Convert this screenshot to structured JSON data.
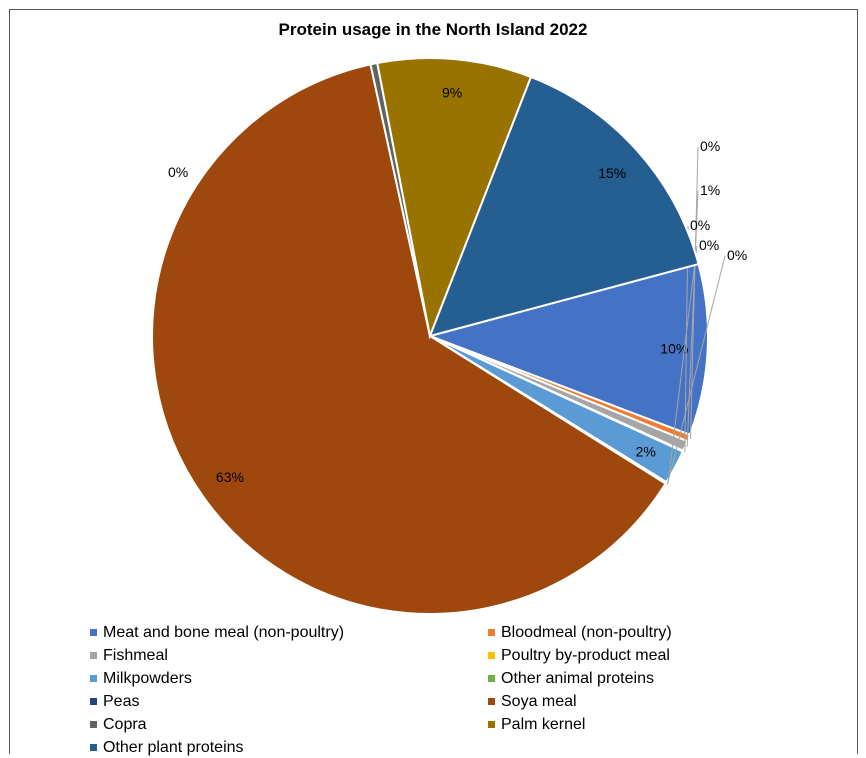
{
  "chart_data": {
    "type": "pie",
    "title": "Protein usage in the North Island 2022",
    "slices": [
      {
        "name": "Meat and bone meal (non-poultry)",
        "value": 10,
        "label": "10%",
        "color": "#4472C4"
      },
      {
        "name": "Bloodmeal (non-poultry)",
        "value": 0.4,
        "label": "0%",
        "color": "#ED7D31"
      },
      {
        "name": "Fishmeal",
        "value": 0.6,
        "label": "1%",
        "color": "#A5A5A5"
      },
      {
        "name": "Poultry by-product meal",
        "value": 0.05,
        "label": "0%",
        "color": "#FFC000"
      },
      {
        "name": "Milkpowders",
        "value": 2,
        "label": "2%",
        "color": "#5B9BD5"
      },
      {
        "name": "Other animal proteins",
        "value": 0.05,
        "label": "0%",
        "color": "#70AD47"
      },
      {
        "name": "Peas",
        "value": 0.05,
        "label": "0%",
        "color": "#264478"
      },
      {
        "name": "Soya meal",
        "value": 63,
        "label": "63%",
        "color": "#9E480E"
      },
      {
        "name": "Copra",
        "value": 0.4,
        "label": "0%",
        "color": "#636363"
      },
      {
        "name": "Palm kernel",
        "value": 9,
        "label": "9%",
        "color": "#997300"
      },
      {
        "name": "Other plant proteins",
        "value": 15,
        "label": "15%",
        "color": "#255E91"
      }
    ],
    "legend_position": "bottom"
  }
}
